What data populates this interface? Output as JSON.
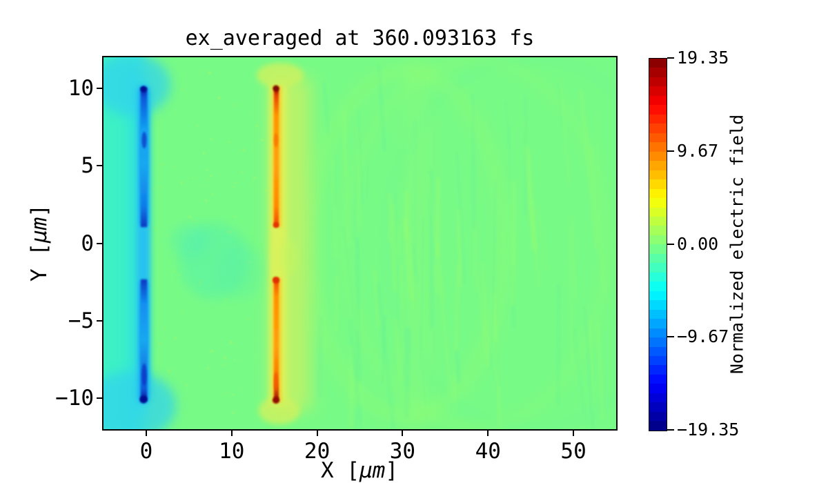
{
  "title": "ex_averaged at 360.093163 fs",
  "axes": {
    "xlabel": {
      "pre": "X [",
      "unit": "μm",
      "post": "]"
    },
    "ylabel": {
      "pre": "Y [",
      "unit": "μm",
      "post": "]"
    },
    "xtick_labels": [
      "0",
      "10",
      "20",
      "30",
      "40",
      "50"
    ],
    "ytick_labels": [
      "10",
      "5",
      "0",
      "−5",
      "−10"
    ]
  },
  "colorbar": {
    "label": "Normalized electric field",
    "tick_labels": [
      "19.35",
      "9.67",
      "0.00",
      "−9.67",
      "−19.35"
    ]
  },
  "chart_data": {
    "type": "heatmap",
    "title": "ex_averaged at 360.093163 fs",
    "xlabel": "X [μm]",
    "ylabel": "Y [μm]",
    "xlim": [
      -5,
      55
    ],
    "ylim": [
      -12,
      12
    ],
    "xticks": [
      0,
      10,
      20,
      30,
      40,
      50
    ],
    "yticks": [
      10,
      5,
      0,
      -5,
      -10
    ],
    "grid": false,
    "colormap": "jet",
    "colorbar": {
      "label": "Normalized electric field",
      "vmin": -19.35,
      "vmax": 19.35,
      "ticks": [
        19.35,
        9.67,
        0.0,
        -9.67,
        -19.35
      ],
      "n_levels": 40,
      "position": "right"
    },
    "background_value": 0.0,
    "features": [
      {
        "name": "negative-field-sheet",
        "x": 0,
        "y_extent": [
          -10,
          10
        ],
        "gap_y": [
          -2.3,
          1.0
        ],
        "peak_value": -19.35,
        "description": "narrow vertical blue stripe at x≈0 μm with cyan/turquoise halo filling x<0; darkest navy at tips y=±10"
      },
      {
        "name": "positive-field-sheet",
        "x": 15,
        "y_extent": [
          -10,
          10
        ],
        "gap_y": [
          -2.5,
          1.0
        ],
        "peak_value": 19.35,
        "description": "narrow vertical orange/red stripe at x≈15 μm with yellow halo extending right; dark red at tips y=±10 and at the gap edges near y≈1 and y≈-2.5"
      },
      {
        "name": "background",
        "value": 0.0,
        "description": "near-zero green field everywhere else, with faint wavy vertical streak noise for x>10 and a weak teal mottled patch near (8,-1)"
      }
    ]
  }
}
